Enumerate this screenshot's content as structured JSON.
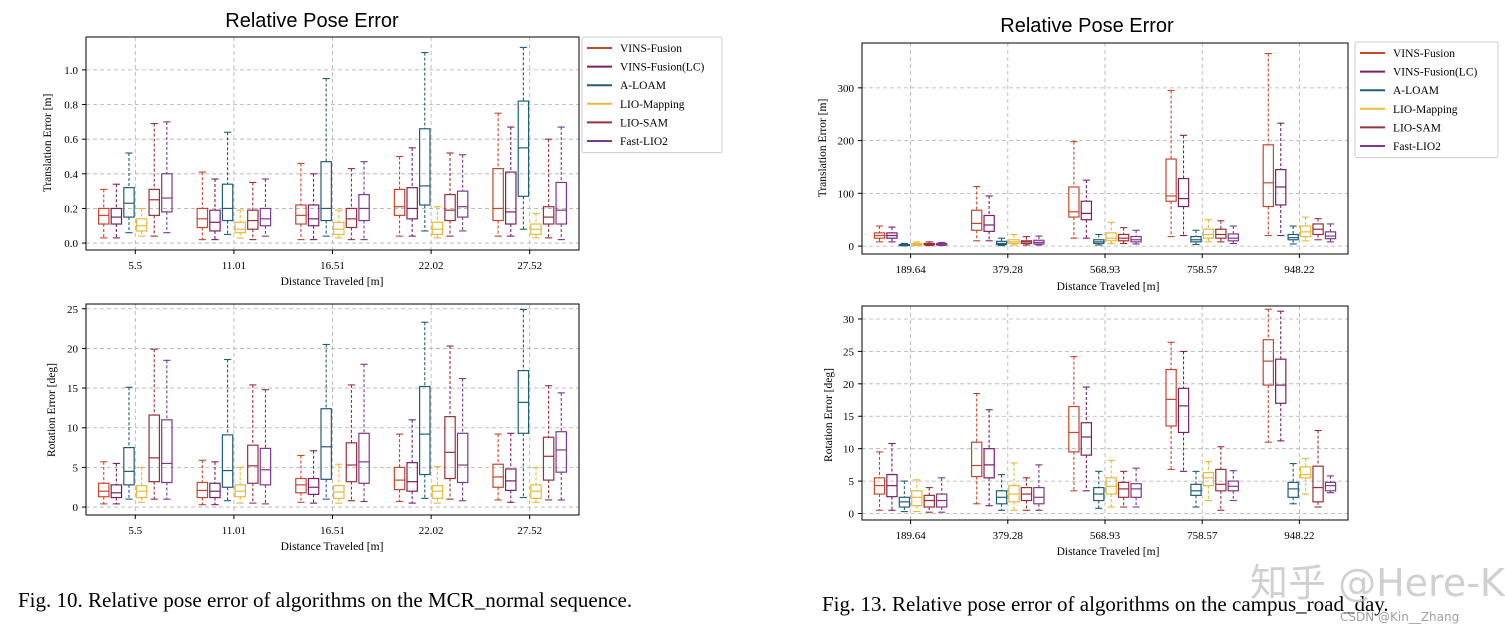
{
  "colors": {
    "series": [
      "#c8472b",
      "#7a1f6e",
      "#1f5f7a",
      "#e8b93a",
      "#9c2f3b",
      "#7b3a8f"
    ],
    "grid": "#b0b0b0"
  },
  "legend_entries": [
    "VINS-Fusion",
    "VINS-Fusion(LC)",
    "A-LOAM",
    "LIO-Mapping",
    "LIO-SAM",
    "Fast-LIO2"
  ],
  "captions": {
    "left": "Fig. 10.   Relative pose error of algorithms on the MCR_normal sequence.",
    "right": "Fig. 13.   Relative pose error of algorithms on the campus_road_day."
  },
  "watermark": {
    "main": "知乎 @Here-Kin",
    "small": "CSDN @Kin__Zhang"
  },
  "chart_data": [
    {
      "type": "boxplot",
      "title": "Relative Pose Error",
      "xlabel": "Distance Traveled [m]",
      "ylabel": "Translation Error [m]",
      "categories": [
        "5.5",
        "11.01",
        "16.51",
        "22.02",
        "27.52"
      ],
      "ylim": [
        -0.04,
        1.19
      ],
      "yticks": [
        "0.0",
        "0.2",
        "0.4",
        "0.6",
        "0.8",
        "1.0"
      ],
      "legend": "outside-right",
      "series": [
        {
          "name": "VINS-Fusion",
          "boxes": [
            [
              0.03,
              0.11,
              0.16,
              0.2,
              0.31
            ],
            [
              0.02,
              0.09,
              0.14,
              0.2,
              0.41
            ],
            [
              0.02,
              0.11,
              0.16,
              0.22,
              0.46
            ],
            [
              0.04,
              0.16,
              0.21,
              0.31,
              0.5
            ],
            [
              0.04,
              0.13,
              0.2,
              0.43,
              0.75
            ]
          ]
        },
        {
          "name": "VINS-Fusion(LC)",
          "boxes": [
            [
              0.03,
              0.11,
              0.15,
              0.2,
              0.34
            ],
            [
              0.02,
              0.07,
              0.12,
              0.19,
              0.37
            ],
            [
              0.02,
              0.1,
              0.14,
              0.22,
              0.4
            ],
            [
              0.04,
              0.14,
              0.2,
              0.32,
              0.55
            ],
            [
              0.04,
              0.11,
              0.18,
              0.41,
              0.67
            ]
          ]
        },
        {
          "name": "A-LOAM",
          "boxes": [
            [
              0.06,
              0.15,
              0.23,
              0.32,
              0.52
            ],
            [
              0.05,
              0.13,
              0.2,
              0.34,
              0.64
            ],
            [
              0.04,
              0.13,
              0.2,
              0.47,
              0.95
            ],
            [
              0.07,
              0.22,
              0.33,
              0.66,
              1.1
            ],
            [
              0.08,
              0.27,
              0.55,
              0.82,
              1.13
            ]
          ]
        },
        {
          "name": "LIO-Mapping",
          "boxes": [
            [
              0.04,
              0.07,
              0.1,
              0.14,
              0.2
            ],
            [
              0.03,
              0.06,
              0.08,
              0.12,
              0.19
            ],
            [
              0.03,
              0.05,
              0.08,
              0.12,
              0.19
            ],
            [
              0.03,
              0.05,
              0.08,
              0.12,
              0.21
            ],
            [
              0.03,
              0.05,
              0.08,
              0.11,
              0.17
            ]
          ]
        },
        {
          "name": "LIO-SAM",
          "boxes": [
            [
              0.04,
              0.16,
              0.25,
              0.31,
              0.69
            ],
            [
              0.02,
              0.08,
              0.13,
              0.19,
              0.35
            ],
            [
              0.02,
              0.09,
              0.14,
              0.2,
              0.43
            ],
            [
              0.04,
              0.13,
              0.19,
              0.28,
              0.52
            ],
            [
              0.03,
              0.11,
              0.15,
              0.21,
              0.6
            ]
          ]
        },
        {
          "name": "Fast-LIO2",
          "boxes": [
            [
              0.06,
              0.18,
              0.26,
              0.4,
              0.7
            ],
            [
              0.04,
              0.1,
              0.14,
              0.2,
              0.37
            ],
            [
              0.02,
              0.13,
              0.2,
              0.28,
              0.47
            ],
            [
              0.07,
              0.15,
              0.21,
              0.3,
              0.51
            ],
            [
              0.02,
              0.11,
              0.19,
              0.35,
              0.67
            ]
          ]
        }
      ]
    },
    {
      "type": "boxplot",
      "title": "",
      "xlabel": "Distance Traveled [m]",
      "ylabel": "Rotation Error [deg]",
      "categories": [
        "5.5",
        "11.01",
        "16.51",
        "22.02",
        "27.52"
      ],
      "ylim": [
        -1.0,
        25.6
      ],
      "yticks": [
        "0",
        "5",
        "10",
        "15",
        "20",
        "25"
      ],
      "legend": "none",
      "series": [
        {
          "name": "VINS-Fusion",
          "boxes": [
            [
              0.4,
              1.3,
              2.0,
              3.0,
              5.7
            ],
            [
              0.3,
              1.2,
              2.1,
              3.1,
              5.9
            ],
            [
              0.6,
              1.8,
              2.8,
              3.6,
              6.5
            ],
            [
              0.7,
              2.2,
              3.4,
              5.0,
              9.2
            ],
            [
              0.9,
              2.5,
              3.8,
              5.4,
              9.2
            ]
          ]
        },
        {
          "name": "VINS-Fusion(LC)",
          "boxes": [
            [
              0.4,
              1.2,
              1.8,
              2.8,
              5.5
            ],
            [
              0.3,
              1.2,
              2.0,
              3.0,
              5.7
            ],
            [
              0.5,
              1.6,
              2.5,
              3.6,
              7.1
            ],
            [
              0.5,
              2.0,
              3.2,
              5.6,
              11.0
            ],
            [
              0.6,
              2.1,
              3.3,
              4.8,
              9.3
            ]
          ]
        },
        {
          "name": "A-LOAM",
          "boxes": [
            [
              1.0,
              2.8,
              4.5,
              7.5,
              15.1
            ],
            [
              0.8,
              2.5,
              4.6,
              9.1,
              18.6
            ],
            [
              1.0,
              3.5,
              7.6,
              12.4,
              20.5
            ],
            [
              1.1,
              4.1,
              9.2,
              15.2,
              23.3
            ],
            [
              1.2,
              9.3,
              13.2,
              17.2,
              24.9
            ]
          ]
        },
        {
          "name": "LIO-Mapping",
          "boxes": [
            [
              0.6,
              1.2,
              2.0,
              2.7,
              5.0
            ],
            [
              0.5,
              1.3,
              2.0,
              2.8,
              5.0
            ],
            [
              0.5,
              1.1,
              1.9,
              2.7,
              5.4
            ],
            [
              0.5,
              1.1,
              2.0,
              2.7,
              5.1
            ],
            [
              0.6,
              1.1,
              2.0,
              2.8,
              5.0
            ]
          ]
        },
        {
          "name": "LIO-SAM",
          "boxes": [
            [
              1.0,
              3.2,
              6.2,
              11.6,
              19.9
            ],
            [
              0.5,
              3.0,
              5.2,
              7.8,
              15.4
            ],
            [
              0.8,
              3.2,
              5.3,
              8.1,
              15.4
            ],
            [
              1.0,
              3.6,
              6.9,
              11.4,
              20.3
            ],
            [
              0.9,
              3.4,
              6.4,
              8.8,
              15.3
            ]
          ]
        },
        {
          "name": "Fast-LIO2",
          "boxes": [
            [
              1.0,
              3.1,
              5.5,
              11.0,
              18.5
            ],
            [
              0.4,
              2.8,
              4.7,
              7.4,
              14.8
            ],
            [
              0.7,
              3.0,
              5.7,
              9.3,
              18.0
            ],
            [
              0.8,
              3.1,
              5.3,
              9.3,
              16.2
            ],
            [
              0.9,
              4.4,
              7.2,
              9.5,
              14.4
            ]
          ]
        }
      ]
    },
    {
      "type": "boxplot",
      "title": "Relative Pose Error",
      "xlabel": "Distance Traveled [m]",
      "ylabel": "Translation Error [m]",
      "categories": [
        "189.64",
        "379.28",
        "568.93",
        "758.57",
        "948.22"
      ],
      "ylim": [
        -15,
        385
      ],
      "yticks": [
        "0",
        "100",
        "200",
        "300"
      ],
      "legend": "top-right",
      "series": [
        {
          "name": "VINS-Fusion",
          "boxes": [
            [
              8,
              15,
              20,
              25,
              38
            ],
            [
              10,
              30,
              43,
              68,
              113
            ],
            [
              15,
              55,
              65,
              112,
              198
            ],
            [
              18,
              85,
              95,
              165,
              295
            ],
            [
              20,
              75,
              120,
              192,
              365
            ]
          ]
        },
        {
          "name": "VINS-Fusion(LC)",
          "boxes": [
            [
              8,
              15,
              20,
              25,
              36
            ],
            [
              10,
              28,
              40,
              58,
              95
            ],
            [
              15,
              50,
              62,
              85,
              125
            ],
            [
              20,
              75,
              90,
              128,
              210
            ],
            [
              20,
              78,
              112,
              145,
              233
            ]
          ]
        },
        {
          "name": "A-LOAM",
          "boxes": [
            [
              0.5,
              1,
              2,
              3,
              5
            ],
            [
              1,
              3,
              5,
              9,
              15
            ],
            [
              2,
              5,
              8,
              12,
              22
            ],
            [
              3,
              8,
              12,
              18,
              30
            ],
            [
              4,
              12,
              16,
              22,
              38
            ]
          ]
        },
        {
          "name": "LIO-Mapping",
          "boxes": [
            [
              1,
              2,
              3,
              5,
              8
            ],
            [
              2,
              5,
              8,
              12,
              22
            ],
            [
              5,
              10,
              15,
              25,
              45
            ],
            [
              8,
              15,
              22,
              32,
              50
            ],
            [
              10,
              18,
              27,
              38,
              55
            ]
          ]
        },
        {
          "name": "LIO-SAM",
          "boxes": [
            [
              1,
              2,
              3,
              5,
              8
            ],
            [
              2,
              5,
              8,
              10,
              18
            ],
            [
              5,
              10,
              15,
              22,
              35
            ],
            [
              8,
              15,
              22,
              32,
              48
            ],
            [
              12,
              22,
              32,
              42,
              52
            ]
          ]
        },
        {
          "name": "Fast-LIO2",
          "boxes": [
            [
              1,
              2,
              3,
              5,
              7
            ],
            [
              2,
              4,
              7,
              11,
              19
            ],
            [
              4,
              8,
              12,
              18,
              30
            ],
            [
              5,
              10,
              15,
              23,
              38
            ],
            [
              8,
              14,
              19,
              27,
              42
            ]
          ]
        }
      ]
    },
    {
      "type": "boxplot",
      "title": "",
      "xlabel": "Distance Traveled [m]",
      "ylabel": "Rotation Error [deg]",
      "categories": [
        "189.64",
        "379.28",
        "568.93",
        "758.57",
        "948.22"
      ],
      "ylim": [
        -1.0,
        32.0
      ],
      "yticks": [
        "0",
        "5",
        "10",
        "15",
        "20",
        "25",
        "30"
      ],
      "legend": "none",
      "series": [
        {
          "name": "VINS-Fusion",
          "boxes": [
            [
              0.5,
              3.0,
              4.3,
              5.5,
              9.5
            ],
            [
              1.5,
              5.7,
              7.4,
              11.0,
              18.5
            ],
            [
              3.5,
              9.5,
              12.5,
              16.5,
              24.2
            ],
            [
              6.8,
              13.5,
              17.6,
              22.2,
              26.4
            ],
            [
              11.0,
              19.8,
              23.5,
              26.8,
              31.5
            ]
          ]
        },
        {
          "name": "VINS-Fusion(LC)",
          "boxes": [
            [
              0.5,
              2.6,
              4.3,
              6.0,
              10.8
            ],
            [
              1.2,
              5.5,
              7.5,
              10.0,
              16.0
            ],
            [
              3.5,
              9.0,
              11.8,
              14.0,
              19.5
            ],
            [
              6.5,
              12.5,
              16.6,
              19.3,
              25.0
            ],
            [
              11.2,
              17.0,
              19.8,
              23.8,
              31.2
            ]
          ]
        },
        {
          "name": "A-LOAM",
          "boxes": [
            [
              0.3,
              1.0,
              1.8,
              2.5,
              5.0
            ],
            [
              0.5,
              1.5,
              2.5,
              3.5,
              6.0
            ],
            [
              0.8,
              2.0,
              3.0,
              4.0,
              6.5
            ],
            [
              1.0,
              2.8,
              3.5,
              4.5,
              6.5
            ],
            [
              1.5,
              2.5,
              3.8,
              4.8,
              7.7
            ]
          ]
        },
        {
          "name": "LIO-Mapping",
          "boxes": [
            [
              0.3,
              1.2,
              2.5,
              3.5,
              5.2
            ],
            [
              0.5,
              1.8,
              3.0,
              4.3,
              7.8
            ],
            [
              1.0,
              3.0,
              4.2,
              5.5,
              8.2
            ],
            [
              2.0,
              4.3,
              5.5,
              6.3,
              8.0
            ],
            [
              3.0,
              5.5,
              6.0,
              7.2,
              8.5
            ]
          ]
        },
        {
          "name": "LIO-SAM",
          "boxes": [
            [
              0.2,
              1.0,
              2.0,
              2.8,
              4.0
            ],
            [
              0.5,
              2.0,
              3.0,
              4.0,
              5.5
            ],
            [
              1.0,
              2.5,
              3.8,
              4.8,
              6.5
            ],
            [
              0.5,
              3.5,
              4.5,
              6.8,
              10.3
            ],
            [
              1.0,
              1.8,
              4.0,
              7.3,
              12.8
            ]
          ]
        },
        {
          "name": "Fast-LIO2",
          "boxes": [
            [
              0.2,
              1.0,
              2.0,
              3.0,
              5.5
            ],
            [
              0.5,
              1.5,
              2.5,
              4.0,
              7.5
            ],
            [
              1.0,
              2.5,
              3.8,
              4.6,
              7.0
            ],
            [
              2.0,
              3.5,
              4.2,
              5.0,
              6.6
            ],
            [
              3.2,
              3.5,
              4.3,
              4.8,
              5.8
            ]
          ]
        }
      ]
    }
  ]
}
